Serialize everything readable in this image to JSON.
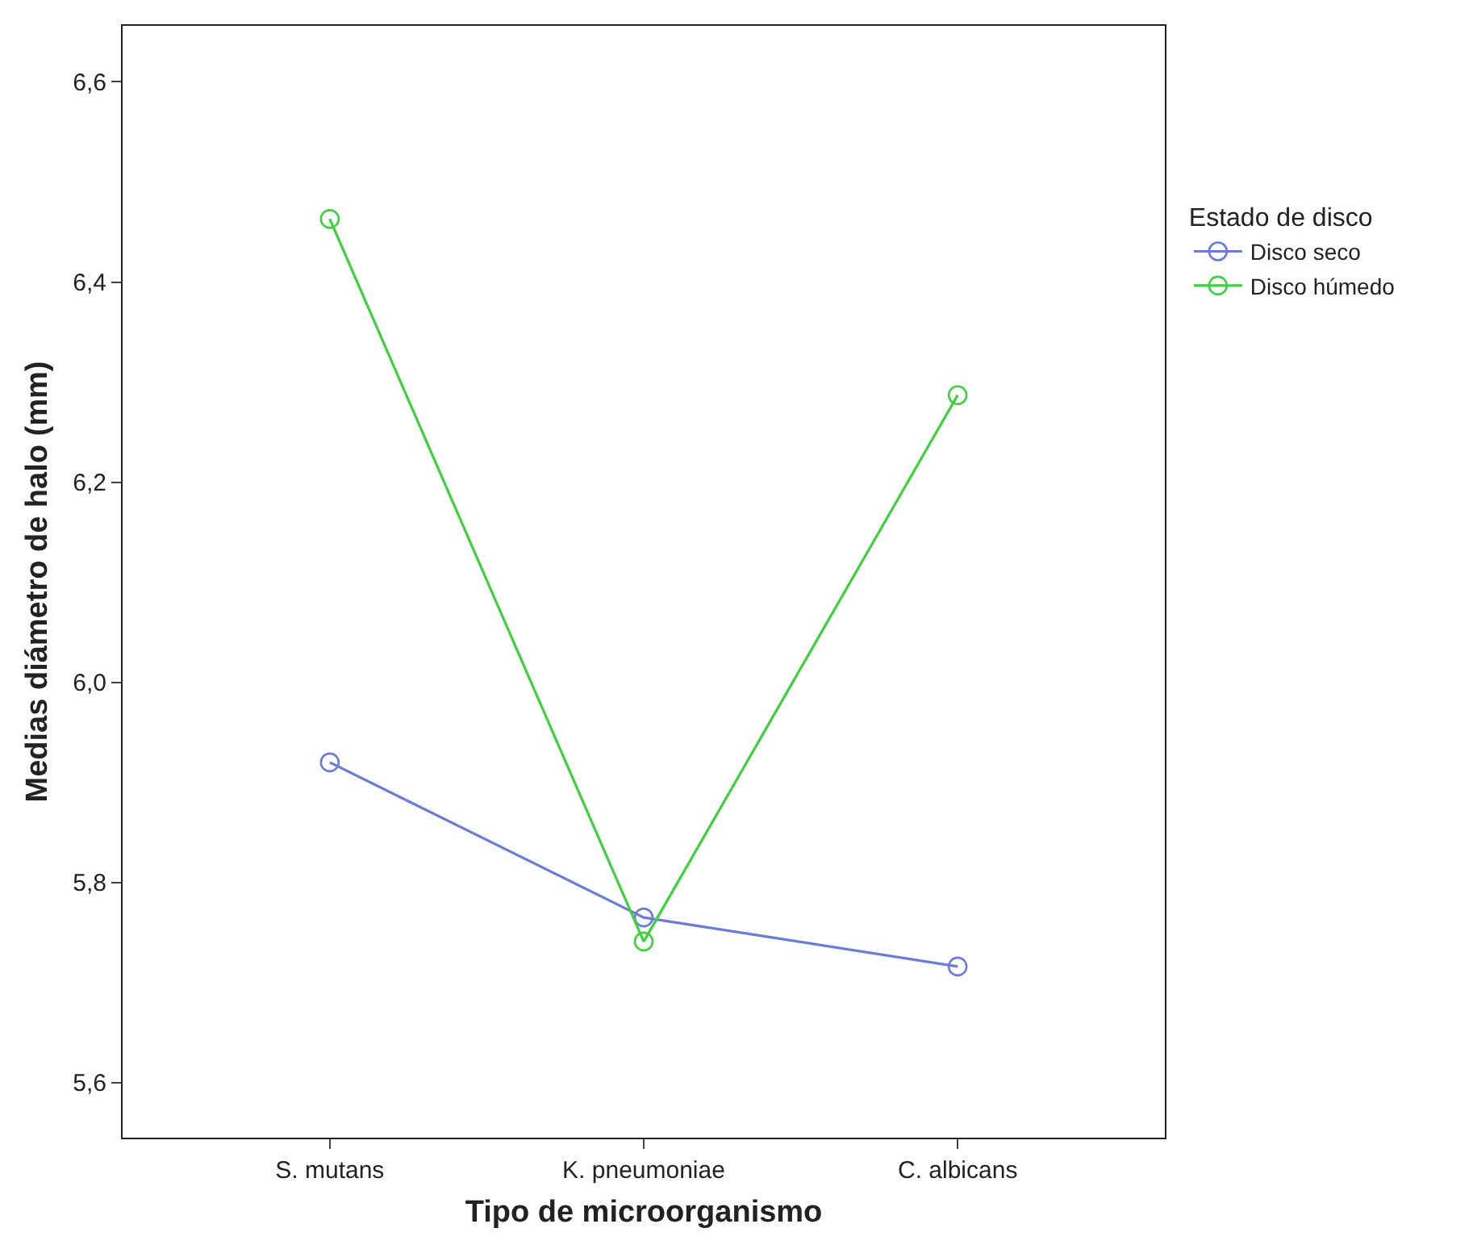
{
  "chart_data": {
    "type": "line",
    "xlabel": "Tipo de microorganismo",
    "ylabel": "Medias diámetro de halo (mm)",
    "legend_title": "Estado de disco",
    "categories": [
      "S. mutans",
      "K. pneumoniae",
      "C. albicans"
    ],
    "series": [
      {
        "name": "Disco seco",
        "color": "#6a7cd9",
        "values": [
          5.92,
          5.765,
          5.716
        ]
      },
      {
        "name": "Disco húmedo",
        "color": "#3cd23c",
        "values": [
          6.463,
          5.741,
          6.287
        ]
      }
    ],
    "ylim": [
      5.545,
      6.656
    ],
    "yticks": [
      {
        "value": 5.6,
        "label": "5,6"
      },
      {
        "value": 5.8,
        "label": "5,8"
      },
      {
        "value": 6.0,
        "label": "6,0"
      },
      {
        "value": 6.2,
        "label": "6,2"
      },
      {
        "value": 6.4,
        "label": "6,4"
      },
      {
        "value": 6.6,
        "label": "6,6"
      }
    ],
    "legend": "top right",
    "marker": "circle",
    "line_style": "solid"
  }
}
